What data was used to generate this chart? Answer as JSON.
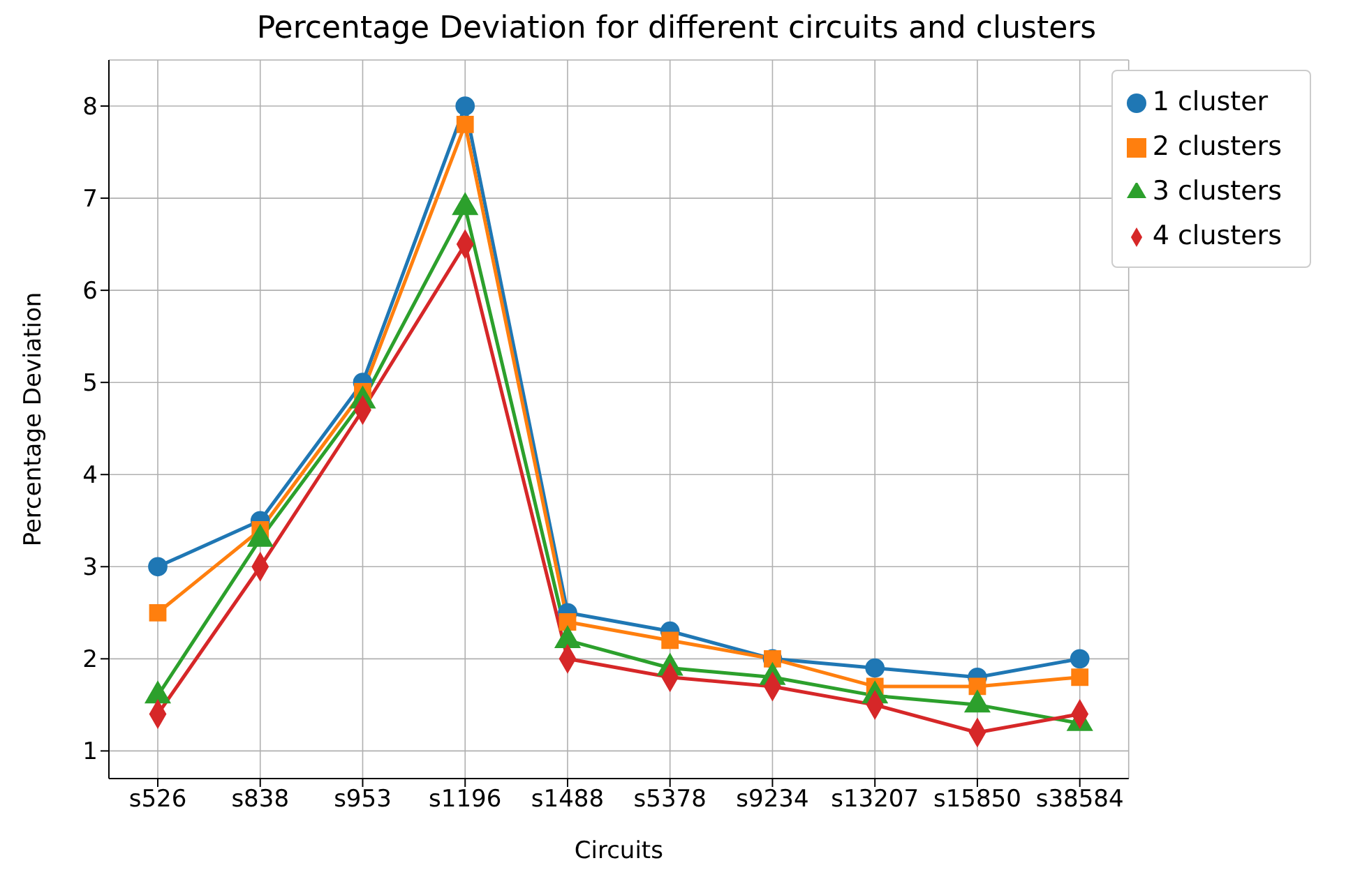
{
  "chart_data": {
    "type": "line",
    "title": "Percentage Deviation for different circuits and clusters",
    "xlabel": "Circuits",
    "ylabel": "Percentage Deviation",
    "categories": [
      "s526",
      "s838",
      "s953",
      "s1196",
      "s1488",
      "s5378",
      "s9234",
      "s13207",
      "s15850",
      "s38584"
    ],
    "series": [
      {
        "name": "1 cluster",
        "color": "#1f77b4",
        "marker": "circle",
        "values": [
          3.0,
          3.5,
          5.0,
          8.0,
          2.5,
          2.3,
          2.0,
          1.9,
          1.8,
          2.0
        ]
      },
      {
        "name": "2 clusters",
        "color": "#ff7f0e",
        "marker": "square",
        "values": [
          2.5,
          3.4,
          4.9,
          7.8,
          2.4,
          2.2,
          2.0,
          1.7,
          1.7,
          1.8
        ]
      },
      {
        "name": "3 clusters",
        "color": "#2ca02c",
        "marker": "triangle",
        "values": [
          1.6,
          3.3,
          4.8,
          6.9,
          2.2,
          1.9,
          1.8,
          1.6,
          1.5,
          1.3
        ]
      },
      {
        "name": "4 clusters",
        "color": "#d62728",
        "marker": "diamond",
        "values": [
          1.4,
          3.0,
          4.7,
          6.5,
          2.0,
          1.8,
          1.7,
          1.5,
          1.2,
          1.4
        ]
      }
    ],
    "ylim": [
      0.7,
      8.5
    ],
    "yticks": [
      1,
      2,
      3,
      4,
      5,
      6,
      7,
      8
    ],
    "grid": true,
    "legend": "top right",
    "line_style": "solid"
  }
}
